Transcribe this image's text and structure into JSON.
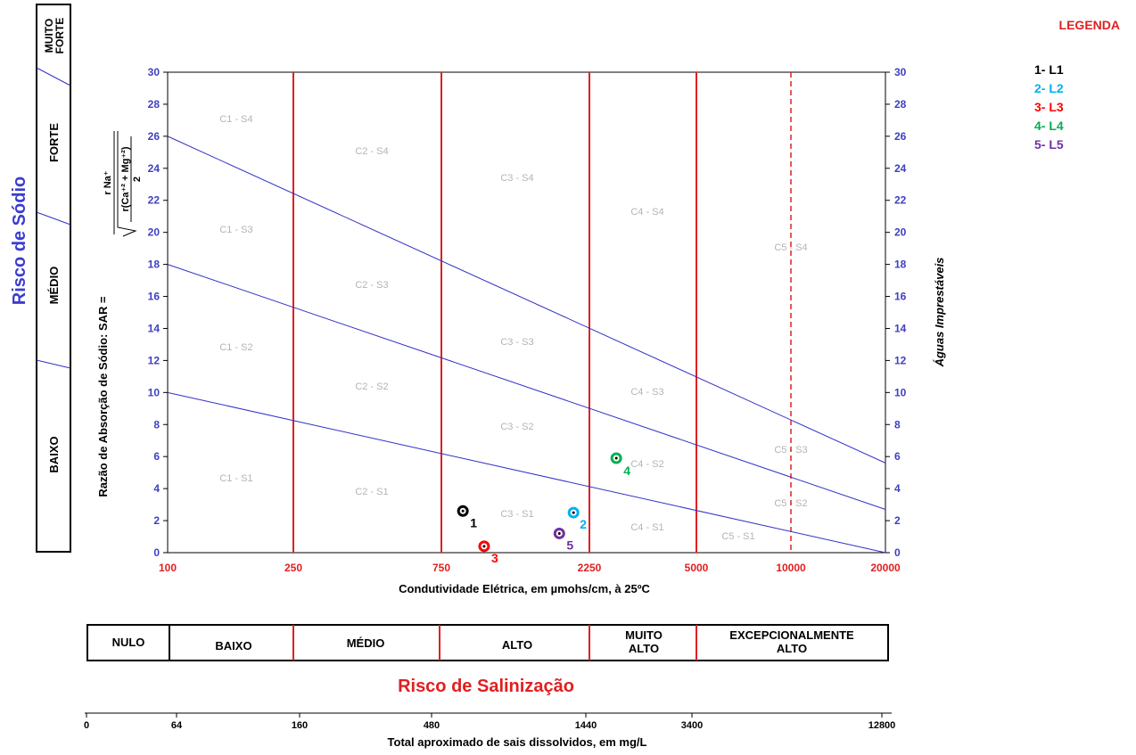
{
  "chart_data": {
    "type": "scatter",
    "left_title": "Risco de Sódio",
    "sodium_risk_levels": [
      "MUITO FORTE",
      "FORTE",
      "MÉDIO",
      "BAIXO"
    ],
    "ylabel": "Razão de Absorção de Sódio:   SAR   =",
    "formula": {
      "numerator": "r Na⁺",
      "denominator": "r(Ca⁺² + Mg⁺²)",
      "divisor": "2"
    },
    "xlabel": "Condutividade Elétrica, em µmohs/cm, à 25ºC",
    "right_label": "Águas Imprestáveis",
    "x_scale": "piecewise-log",
    "x_ticks": [
      100,
      250,
      750,
      2250,
      5000,
      10000,
      20000
    ],
    "x_tick_labels": [
      "100",
      "250",
      "750",
      "2250",
      "5000",
      "10000",
      "20000"
    ],
    "ylim": [
      0,
      30
    ],
    "y_ticks": [
      "0",
      "2",
      "4",
      "6",
      "8",
      "10",
      "12",
      "14",
      "16",
      "18",
      "20",
      "22",
      "24",
      "26",
      "28",
      "30"
    ],
    "boundary_lines": [
      {
        "x": [
          100,
          20000
        ],
        "y": [
          10,
          0
        ]
      },
      {
        "x": [
          100,
          20000
        ],
        "y": [
          18,
          2.7
        ]
      },
      {
        "x": [
          100,
          20000
        ],
        "y": [
          26,
          5.6
        ]
      }
    ],
    "zone_labels": [
      "C1 - S4",
      "C1 - S3",
      "C1 - S2",
      "C1 - S1",
      "C2 - S4",
      "C2 - S3",
      "C2 - S2",
      "C2 - S1",
      "C3 - S4",
      "C3 - S3",
      "C3 - S2",
      "C3 - S1",
      "C4 - S4",
      "C4 - S3",
      "C4 - S2",
      "C4 - S1",
      "C5 - S4",
      "C5 - S3",
      "C5 - S2",
      "C5 - S1"
    ],
    "points": [
      {
        "label": "1",
        "x": 880,
        "y": 2.6,
        "color": "#000000"
      },
      {
        "label": "2",
        "x": 2000,
        "y": 2.5,
        "color": "#00b0f0"
      },
      {
        "label": "3",
        "x": 1030,
        "y": 0.4,
        "color": "#ff0000"
      },
      {
        "label": "4",
        "x": 2750,
        "y": 5.9,
        "color": "#00b050"
      },
      {
        "label": "5",
        "x": 1800,
        "y": 1.2,
        "color": "#7030a0"
      }
    ],
    "legend": {
      "title": "LEGENDA",
      "position": "top-right",
      "items": [
        {
          "text": "1- L1",
          "color": "#000000"
        },
        {
          "text": "2- L2",
          "color": "#00b0f0"
        },
        {
          "text": "3- L3",
          "color": "#ff0000"
        },
        {
          "text": "4- L4",
          "color": "#00b050"
        },
        {
          "text": "5- L5",
          "color": "#7030a0"
        }
      ]
    },
    "salinity_title": "Risco de Salinização",
    "salinity_levels": [
      "NULO",
      "BAIXO",
      "MÉDIO",
      "ALTO",
      "MUITO ALTO",
      "EXCEPCIONALMENTE ALTO"
    ],
    "tds_ticks": [
      "0",
      "64",
      "160",
      "480",
      "1440",
      "3400",
      "12800"
    ],
    "tds_label": "Total aproximado de sais dissolvidos, em mg/L"
  },
  "colors": {
    "axis_blue": "#4040c0",
    "title_blue": "#3c3cd0",
    "red": "#e02020",
    "boundary": "#3030c8",
    "zone_text": "#b4b4b4"
  }
}
